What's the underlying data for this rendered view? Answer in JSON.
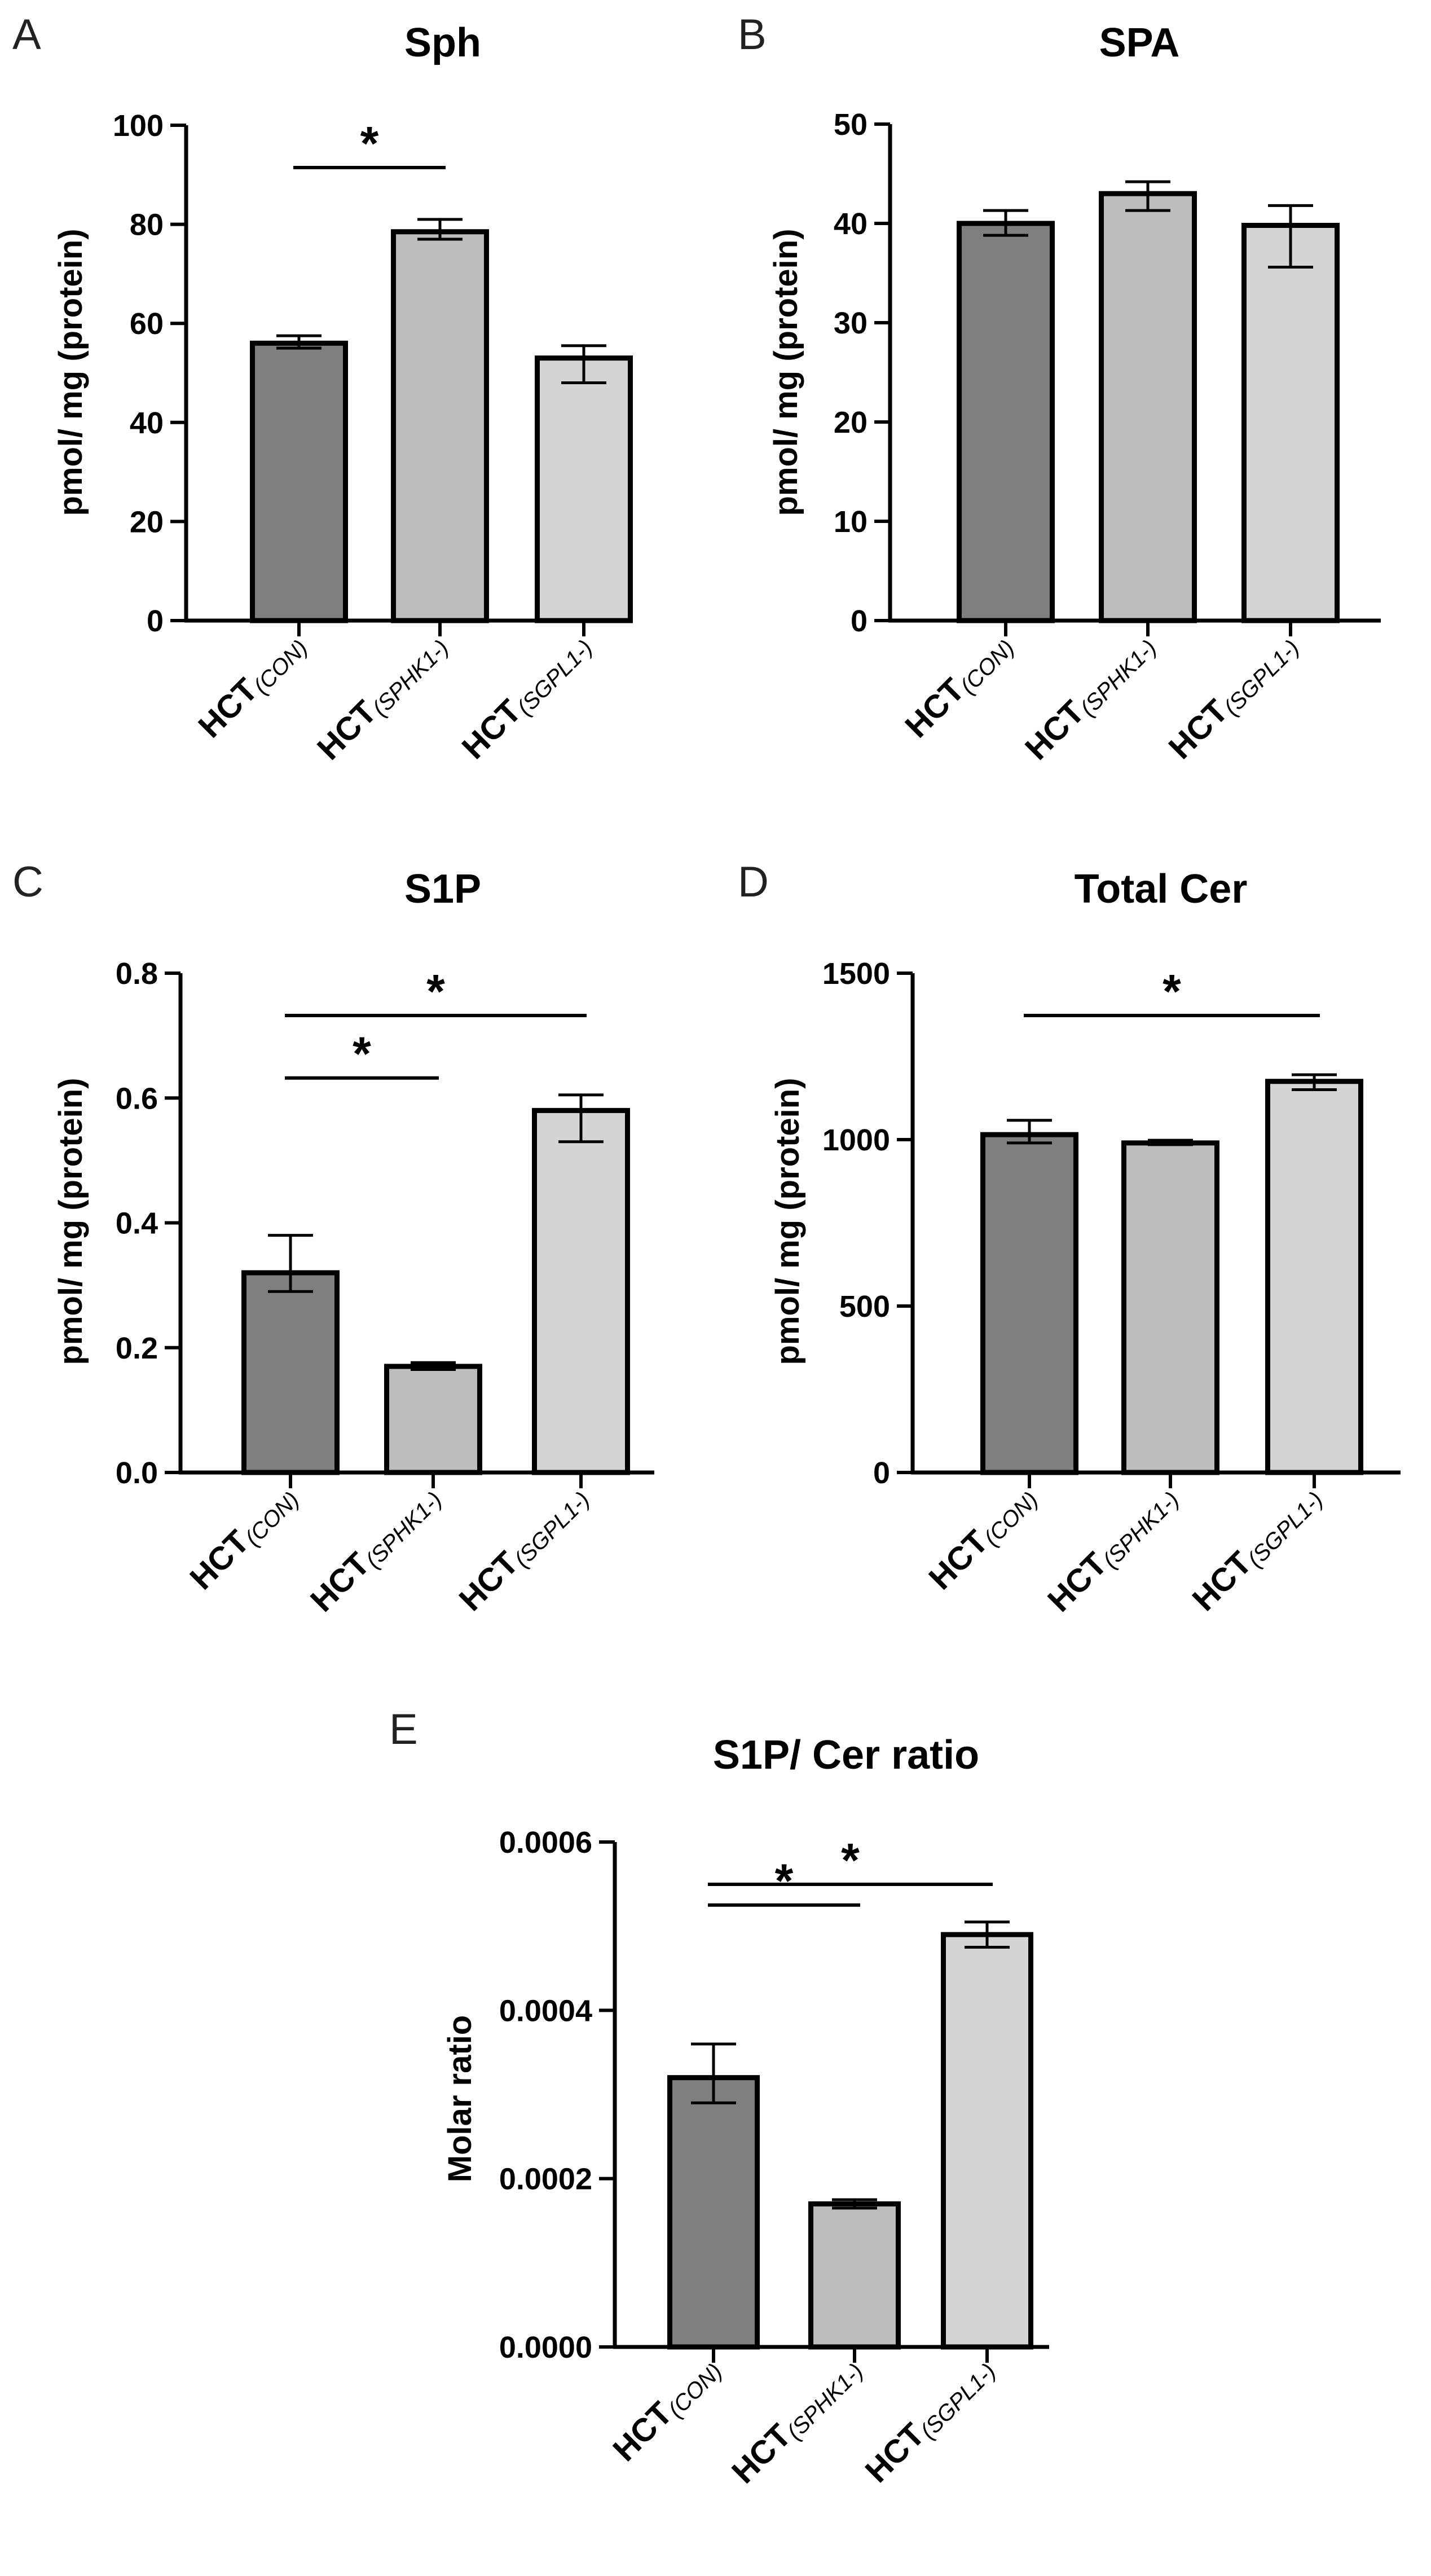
{
  "colors": {
    "con": "#7f7f7f",
    "sphk1": "#bdbdbd",
    "sgpl1": "#d4d4d6",
    "stroke": "#000000"
  },
  "categories": [
    {
      "main": "HCT",
      "sub": "(CON)"
    },
    {
      "main": "HCT",
      "sub": "(SPHK1-)"
    },
    {
      "main": "HCT",
      "sub": "(SGPL1-)"
    }
  ],
  "chart_data": [
    {
      "panel": "A",
      "type": "bar",
      "title": "Sph",
      "ylabel": "pmol/ mg (protein)",
      "ylim": [
        0,
        100
      ],
      "yticks": [
        "0",
        "20",
        "40",
        "60",
        "80",
        "100"
      ],
      "values": [
        56,
        78.5,
        53
      ],
      "err_hi": [
        57.5,
        81,
        55.5
      ],
      "err_lo": [
        55,
        77,
        48
      ],
      "significance": [
        {
          "from": 0,
          "to": 1,
          "label": "*"
        }
      ]
    },
    {
      "panel": "B",
      "type": "bar",
      "title": "SPA",
      "ylabel": "pmol/ mg (protein)",
      "ylim": [
        0,
        50
      ],
      "yticks": [
        "0",
        "10",
        "20",
        "30",
        "40",
        "50"
      ],
      "values": [
        40,
        43,
        39.8
      ],
      "err_hi": [
        41.3,
        44.2,
        41.8
      ],
      "err_lo": [
        38.8,
        41.3,
        35.6
      ],
      "significance": []
    },
    {
      "panel": "C",
      "type": "bar",
      "title": "S1P",
      "ylabel": "pmol/ mg (protein)",
      "ylim": [
        0,
        0.8
      ],
      "yticks": [
        "0.0",
        "0.2",
        "0.4",
        "0.6",
        "0.8"
      ],
      "values": [
        0.32,
        0.17,
        0.58
      ],
      "err_hi": [
        0.38,
        0.176,
        0.605
      ],
      "err_lo": [
        0.29,
        0.165,
        0.53
      ],
      "significance": [
        {
          "from": 0,
          "to": 1,
          "label": "*"
        },
        {
          "from": 0,
          "to": 2,
          "label": "*"
        }
      ]
    },
    {
      "panel": "D",
      "type": "bar",
      "title": "Total Cer",
      "ylabel": "pmol/ mg (protein)",
      "ylim": [
        0,
        1500
      ],
      "yticks": [
        "0",
        "500",
        "1000",
        "1500"
      ],
      "values": [
        1015,
        990,
        1175
      ],
      "err_hi": [
        1058,
        998,
        1195
      ],
      "err_lo": [
        990,
        985,
        1150
      ],
      "significance": [
        {
          "from": 0,
          "to": 2,
          "label": "*"
        }
      ]
    },
    {
      "panel": "E",
      "type": "bar",
      "title": "S1P/ Cer ratio",
      "ylabel": "Molar ratio",
      "ylim": [
        0,
        0.0006
      ],
      "yticks": [
        "0.0000",
        "0.0002",
        "0.0004",
        "0.0006"
      ],
      "values": [
        0.00032,
        0.00017,
        0.00049
      ],
      "err_hi": [
        0.00036,
        0.000175,
        0.000505
      ],
      "err_lo": [
        0.00029,
        0.000165,
        0.000475
      ],
      "significance": [
        {
          "from": 0,
          "to": 1,
          "label": "*"
        },
        {
          "from": 0,
          "to": 2,
          "label": "*"
        }
      ]
    }
  ]
}
